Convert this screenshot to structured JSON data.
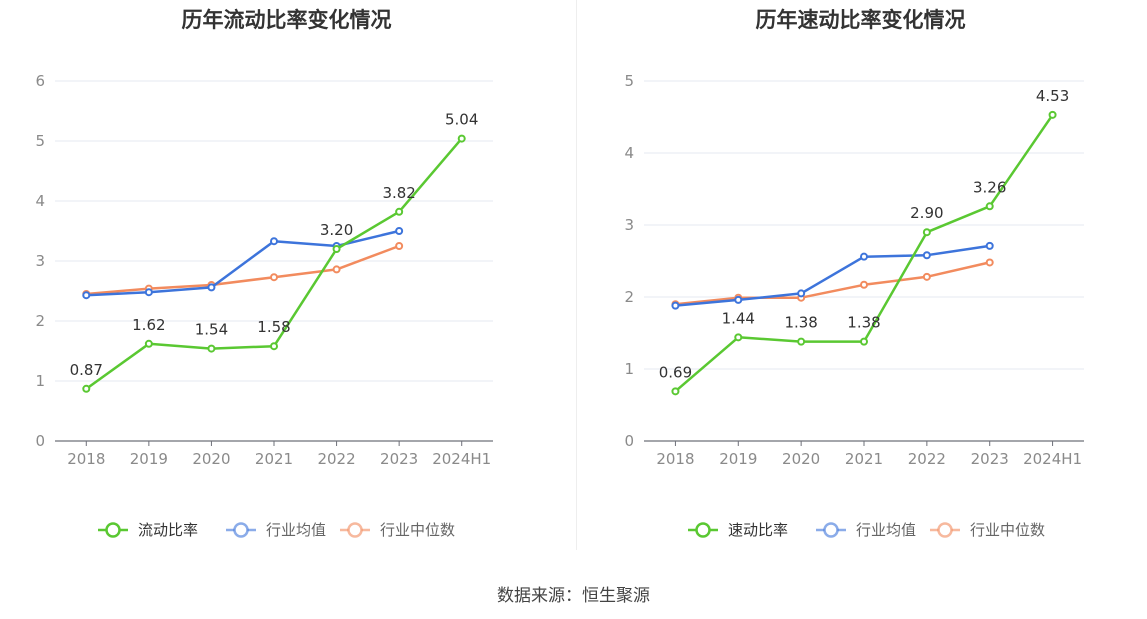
{
  "source": "数据来源：恒生聚源",
  "chart_data": [
    {
      "type": "line",
      "title": "历年流动比率变化情况",
      "categories": [
        "2018",
        "2019",
        "2020",
        "2021",
        "2022",
        "2023",
        "2024H1"
      ],
      "ylim": [
        0,
        6
      ],
      "yticks": [
        0,
        1,
        2,
        3,
        4,
        5,
        6
      ],
      "grid": true,
      "legend_position": "bottom",
      "series": [
        {
          "name": "流动比率",
          "color": "#5ac832",
          "values": [
            0.87,
            1.62,
            1.54,
            1.58,
            3.2,
            3.82,
            5.04
          ],
          "labels": [
            "0.87",
            "1.62",
            "1.54",
            "1.58",
            "3.20",
            "3.82",
            "5.04"
          ]
        },
        {
          "name": "行业均值",
          "color": "#3d74db",
          "values": [
            2.43,
            2.48,
            2.56,
            3.33,
            3.25,
            3.5,
            null
          ]
        },
        {
          "name": "行业中位数",
          "color": "#f28b5e",
          "values": [
            2.45,
            2.54,
            2.6,
            2.73,
            2.86,
            3.25,
            null
          ]
        }
      ]
    },
    {
      "type": "line",
      "title": "历年速动比率变化情况",
      "categories": [
        "2018",
        "2019",
        "2020",
        "2021",
        "2022",
        "2023",
        "2024H1"
      ],
      "ylim": [
        0,
        5
      ],
      "yticks": [
        0,
        1,
        2,
        3,
        4,
        5
      ],
      "grid": true,
      "legend_position": "bottom",
      "series": [
        {
          "name": "速动比率",
          "color": "#5ac832",
          "values": [
            0.69,
            1.44,
            1.38,
            1.38,
            2.9,
            3.26,
            4.53
          ],
          "labels": [
            "0.69",
            "1.44",
            "1.38",
            "1.38",
            "2.90",
            "3.26",
            "4.53"
          ]
        },
        {
          "name": "行业均值",
          "color": "#3d74db",
          "values": [
            1.88,
            1.96,
            2.05,
            2.56,
            2.58,
            2.71,
            null
          ]
        },
        {
          "name": "行业中位数",
          "color": "#f28b5e",
          "values": [
            1.9,
            1.99,
            1.99,
            2.17,
            2.28,
            2.48,
            null
          ]
        }
      ]
    }
  ]
}
